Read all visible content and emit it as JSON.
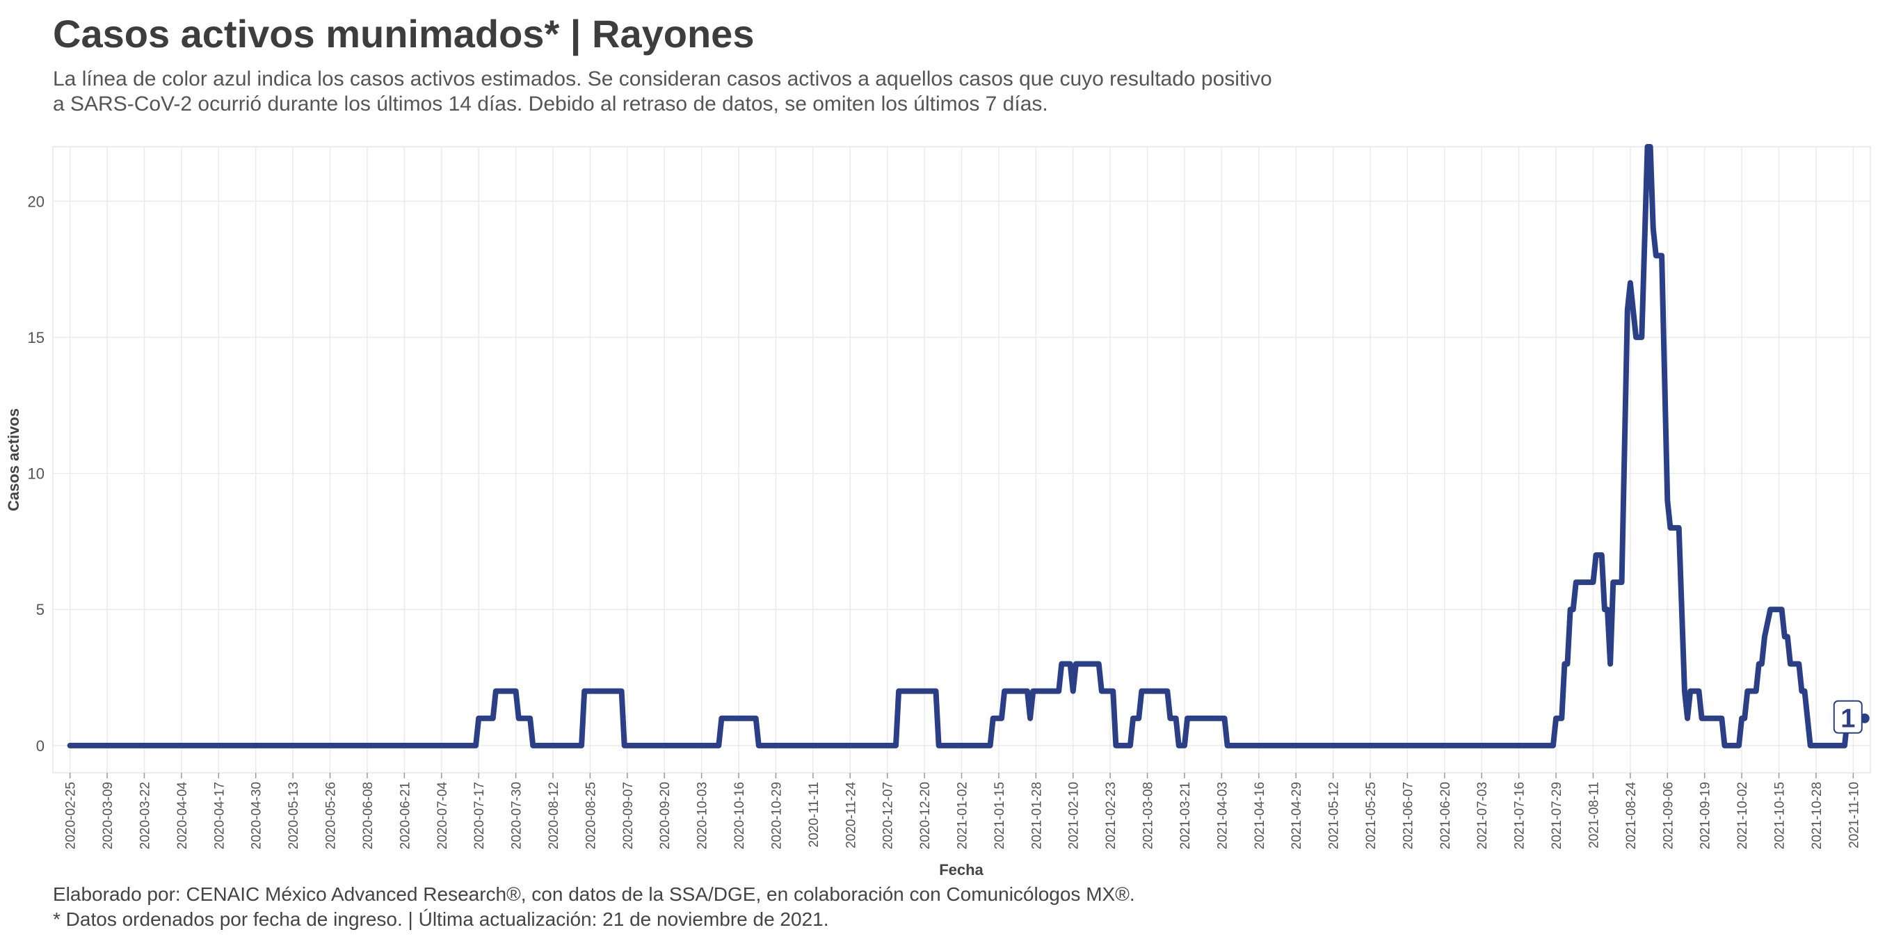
{
  "header": {
    "title": "Casos activos munimados* | Rayones",
    "subtitle_line1": "La línea de color azul indica los casos activos estimados. Se consideran casos activos a aquellos casos que cuyo resultado positivo",
    "subtitle_line2": "a SARS-CoV-2 ocurrió durante los últimos 14 días. Debido al retraso de datos, se omiten los últimos 7 días."
  },
  "caption": {
    "line1": "Elaborado por: CENAIC México Advanced Research®, con datos de la SSA/DGE, en colaboración con Comunicólogos MX®.",
    "line2": "* Datos ordenados por fecha de ingreso. | Última actualización: 21 de noviembre de 2021."
  },
  "colors": {
    "line": "#2b3f87",
    "grid": "#ebebeb",
    "panel_border": "#e6e6e6"
  },
  "chart_data": {
    "type": "line",
    "title": "Casos activos munimados* | Rayones",
    "xlabel": "Fecha",
    "ylabel": "Casos activos",
    "ylim": [
      -1,
      22
    ],
    "yticks": [
      0,
      5,
      10,
      15,
      20
    ],
    "xlim": [
      "2020-02-19",
      "2021-11-16"
    ],
    "xticks": [
      "2020-02-25",
      "2020-03-09",
      "2020-03-22",
      "2020-04-04",
      "2020-04-17",
      "2020-04-30",
      "2020-05-13",
      "2020-05-26",
      "2020-06-08",
      "2020-06-21",
      "2020-07-04",
      "2020-07-17",
      "2020-07-30",
      "2020-08-12",
      "2020-08-25",
      "2020-09-07",
      "2020-09-20",
      "2020-10-03",
      "2020-10-16",
      "2020-10-29",
      "2020-11-11",
      "2020-11-24",
      "2020-12-07",
      "2020-12-20",
      "2021-01-02",
      "2021-01-15",
      "2021-01-28",
      "2021-02-10",
      "2021-02-23",
      "2021-03-08",
      "2021-03-21",
      "2021-04-03",
      "2021-04-16",
      "2021-04-29",
      "2021-05-12",
      "2021-05-25",
      "2021-06-07",
      "2021-06-20",
      "2021-07-03",
      "2021-07-16",
      "2021-07-29",
      "2021-08-11",
      "2021-08-24",
      "2021-09-06",
      "2021-09-19",
      "2021-10-02",
      "2021-10-15",
      "2021-10-28",
      "2021-11-10"
    ],
    "grid": true,
    "end_label": "1",
    "series": [
      {
        "points": [
          [
            "2020-02-25",
            0
          ],
          [
            "2020-07-16",
            0
          ],
          [
            "2020-07-17",
            1
          ],
          [
            "2020-07-22",
            1
          ],
          [
            "2020-07-23",
            2
          ],
          [
            "2020-07-30",
            2
          ],
          [
            "2020-07-31",
            1
          ],
          [
            "2020-08-04",
            1
          ],
          [
            "2020-08-05",
            0
          ],
          [
            "2020-08-22",
            0
          ],
          [
            "2020-08-23",
            2
          ],
          [
            "2020-09-05",
            2
          ],
          [
            "2020-09-06",
            0
          ],
          [
            "2020-10-09",
            0
          ],
          [
            "2020-10-10",
            1
          ],
          [
            "2020-10-22",
            1
          ],
          [
            "2020-10-23",
            0
          ],
          [
            "2020-12-10",
            0
          ],
          [
            "2020-12-11",
            2
          ],
          [
            "2020-12-24",
            2
          ],
          [
            "2020-12-25",
            0
          ],
          [
            "2021-01-12",
            0
          ],
          [
            "2021-01-13",
            1
          ],
          [
            "2021-01-16",
            1
          ],
          [
            "2021-01-17",
            2
          ],
          [
            "2021-01-25",
            2
          ],
          [
            "2021-01-26",
            1
          ],
          [
            "2021-01-27",
            2
          ],
          [
            "2021-02-05",
            2
          ],
          [
            "2021-02-06",
            3
          ],
          [
            "2021-02-09",
            3
          ],
          [
            "2021-02-10",
            2
          ],
          [
            "2021-02-11",
            3
          ],
          [
            "2021-02-19",
            3
          ],
          [
            "2021-02-20",
            2
          ],
          [
            "2021-02-24",
            2
          ],
          [
            "2021-02-25",
            0
          ],
          [
            "2021-03-02",
            0
          ],
          [
            "2021-03-03",
            1
          ],
          [
            "2021-03-05",
            1
          ],
          [
            "2021-03-06",
            2
          ],
          [
            "2021-03-15",
            2
          ],
          [
            "2021-03-16",
            1
          ],
          [
            "2021-03-18",
            1
          ],
          [
            "2021-03-19",
            0
          ],
          [
            "2021-03-21",
            0
          ],
          [
            "2021-03-22",
            1
          ],
          [
            "2021-04-04",
            1
          ],
          [
            "2021-04-05",
            0
          ],
          [
            "2021-07-28",
            0
          ],
          [
            "2021-07-29",
            1
          ],
          [
            "2021-07-31",
            1
          ],
          [
            "2021-08-01",
            3
          ],
          [
            "2021-08-02",
            3
          ],
          [
            "2021-08-03",
            5
          ],
          [
            "2021-08-04",
            5
          ],
          [
            "2021-08-05",
            6
          ],
          [
            "2021-08-11",
            6
          ],
          [
            "2021-08-12",
            7
          ],
          [
            "2021-08-14",
            7
          ],
          [
            "2021-08-15",
            5
          ],
          [
            "2021-08-16",
            5
          ],
          [
            "2021-08-17",
            3
          ],
          [
            "2021-08-18",
            6
          ],
          [
            "2021-08-21",
            6
          ],
          [
            "2021-08-23",
            16
          ],
          [
            "2021-08-24",
            17
          ],
          [
            "2021-08-26",
            15
          ],
          [
            "2021-08-28",
            15
          ],
          [
            "2021-08-30",
            22
          ],
          [
            "2021-08-31",
            22
          ],
          [
            "2021-09-01",
            19
          ],
          [
            "2021-09-02",
            18
          ],
          [
            "2021-09-04",
            18
          ],
          [
            "2021-09-06",
            9
          ],
          [
            "2021-09-07",
            8
          ],
          [
            "2021-09-10",
            8
          ],
          [
            "2021-09-12",
            2
          ],
          [
            "2021-09-13",
            1
          ],
          [
            "2021-09-14",
            2
          ],
          [
            "2021-09-17",
            2
          ],
          [
            "2021-09-18",
            1
          ],
          [
            "2021-09-25",
            1
          ],
          [
            "2021-09-26",
            0
          ],
          [
            "2021-10-01",
            0
          ],
          [
            "2021-10-02",
            1
          ],
          [
            "2021-10-03",
            1
          ],
          [
            "2021-10-04",
            2
          ],
          [
            "2021-10-07",
            2
          ],
          [
            "2021-10-08",
            3
          ],
          [
            "2021-10-09",
            3
          ],
          [
            "2021-10-10",
            4
          ],
          [
            "2021-10-12",
            5
          ],
          [
            "2021-10-16",
            5
          ],
          [
            "2021-10-17",
            4
          ],
          [
            "2021-10-18",
            4
          ],
          [
            "2021-10-19",
            3
          ],
          [
            "2021-10-22",
            3
          ],
          [
            "2021-10-23",
            2
          ],
          [
            "2021-10-24",
            2
          ],
          [
            "2021-10-26",
            0
          ],
          [
            "2021-11-07",
            0
          ],
          [
            "2021-11-08",
            1
          ],
          [
            "2021-11-14",
            1
          ]
        ]
      }
    ]
  }
}
